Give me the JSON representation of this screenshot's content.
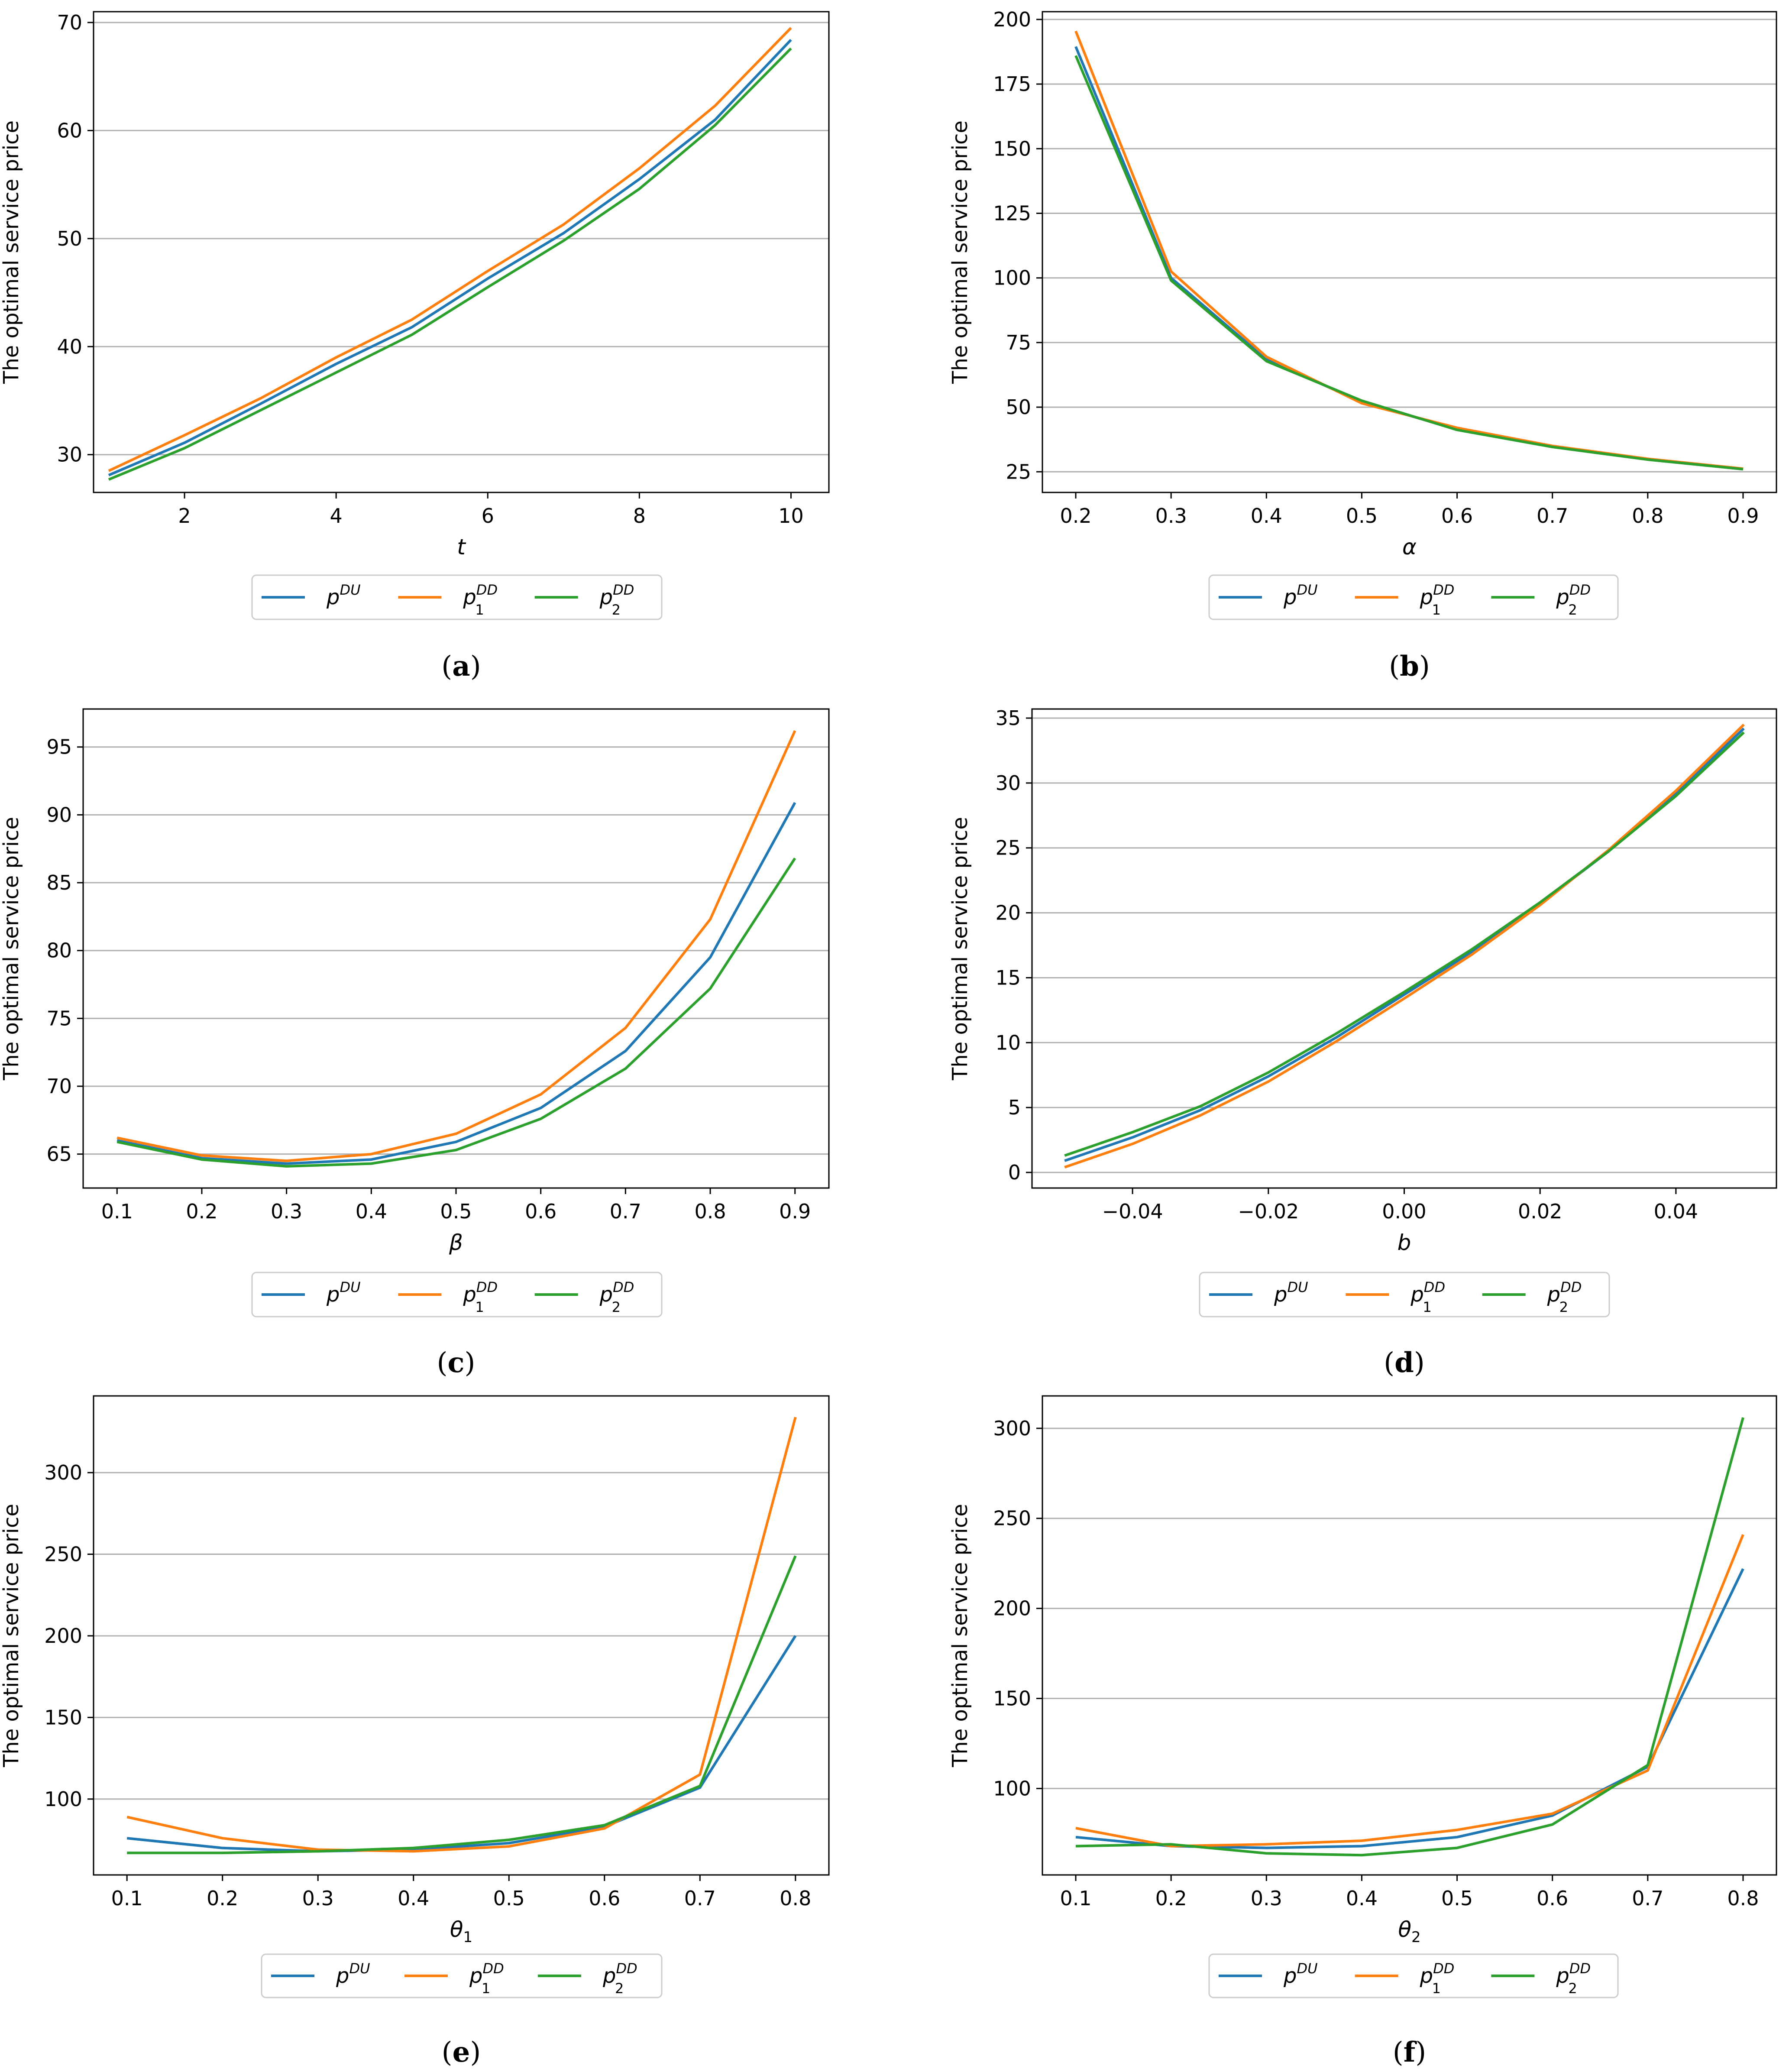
{
  "chart_data": [
    {
      "panel": "a",
      "caption": {
        "open": "(",
        "letter": "a",
        "close": ")"
      },
      "type": "line",
      "ylabel": "The optimal service price",
      "xlabel": "t",
      "xlabel_sub": "",
      "xlim": [
        0.8,
        10.5
      ],
      "ylim": [
        26.5,
        71
      ],
      "xticks": [
        2,
        4,
        6,
        8,
        10
      ],
      "xtick_labels": [
        "2",
        "4",
        "6",
        "8",
        "10"
      ],
      "yticks": [
        30,
        40,
        50,
        60,
        70
      ],
      "ytick_labels": [
        "30",
        "40",
        "50",
        "60",
        "70"
      ],
      "grid": "horizontal",
      "legend_position": "below",
      "x": [
        1,
        2,
        3,
        4,
        5,
        6,
        7,
        8,
        9,
        10
      ],
      "series": [
        {
          "values": [
            28.1,
            31.1,
            34.7,
            38.4,
            41.8,
            46.3,
            50.5,
            55.5,
            61.0,
            68.4
          ],
          "color": "#1f77b4"
        },
        {
          "values": [
            28.5,
            31.8,
            35.2,
            39.0,
            42.5,
            47.0,
            51.3,
            56.5,
            62.3,
            69.5
          ],
          "color": "#ff7f0e"
        },
        {
          "values": [
            27.7,
            30.6,
            34.1,
            37.6,
            41.1,
            45.5,
            49.8,
            54.6,
            60.5,
            67.6
          ],
          "color": "#2ca02c"
        }
      ]
    },
    {
      "panel": "b",
      "caption": {
        "open": "(",
        "letter": "b",
        "close": ")"
      },
      "type": "line",
      "ylabel": "The optimal service price",
      "xlabel": "α",
      "xlabel_sub": "",
      "xlim": [
        0.165,
        0.935
      ],
      "ylim": [
        17,
        203
      ],
      "xticks": [
        0.2,
        0.3,
        0.4,
        0.5,
        0.6,
        0.7,
        0.8,
        0.9
      ],
      "xtick_labels": [
        "0.2",
        "0.3",
        "0.4",
        "0.5",
        "0.6",
        "0.7",
        "0.8",
        "0.9"
      ],
      "yticks": [
        25,
        50,
        75,
        100,
        125,
        150,
        175,
        200
      ],
      "ytick_labels": [
        "25",
        "50",
        "75",
        "100",
        "125",
        "150",
        "175",
        "200"
      ],
      "grid": "horizontal",
      "legend_position": "below",
      "x": [
        0.2,
        0.3,
        0.4,
        0.5,
        0.6,
        0.7,
        0.8,
        0.9
      ],
      "series": [
        {
          "values": [
            189.5,
            100.0,
            68.5,
            52.0,
            41.5,
            34.8,
            29.8,
            26.0
          ],
          "color": "#1f77b4"
        },
        {
          "values": [
            195.5,
            102.5,
            69.5,
            51.5,
            42.0,
            35.0,
            30.0,
            26.2
          ],
          "color": "#ff7f0e"
        },
        {
          "values": [
            186.0,
            99.0,
            67.8,
            52.5,
            41.2,
            34.6,
            29.7,
            26.0
          ],
          "color": "#2ca02c"
        }
      ]
    },
    {
      "panel": "c",
      "caption": {
        "open": "(",
        "letter": "c",
        "close": ")"
      },
      "type": "line",
      "ylabel": "The optimal service price",
      "xlabel": "β",
      "xlabel_sub": "",
      "xlim": [
        0.06,
        0.94
      ],
      "ylim": [
        62.5,
        97.8
      ],
      "xticks": [
        0.1,
        0.2,
        0.3,
        0.4,
        0.5,
        0.6,
        0.7,
        0.8,
        0.9
      ],
      "xtick_labels": [
        "0.1",
        "0.2",
        "0.3",
        "0.4",
        "0.5",
        "0.6",
        "0.7",
        "0.8",
        "0.9"
      ],
      "yticks": [
        65,
        70,
        75,
        80,
        85,
        90,
        95
      ],
      "ytick_labels": [
        "65",
        "70",
        "75",
        "80",
        "85",
        "90",
        "95"
      ],
      "grid": "horizontal",
      "legend_position": "below",
      "x": [
        0.1,
        0.2,
        0.3,
        0.4,
        0.5,
        0.6,
        0.7,
        0.8,
        0.9
      ],
      "series": [
        {
          "values": [
            66.0,
            64.7,
            64.3,
            64.6,
            65.9,
            68.4,
            72.6,
            79.5,
            90.9
          ],
          "color": "#1f77b4"
        },
        {
          "values": [
            66.2,
            64.9,
            64.5,
            65.0,
            66.5,
            69.4,
            74.3,
            82.3,
            96.2
          ],
          "color": "#ff7f0e"
        },
        {
          "values": [
            65.9,
            64.6,
            64.1,
            64.3,
            65.3,
            67.6,
            71.3,
            77.2,
            86.8
          ],
          "color": "#2ca02c"
        }
      ]
    },
    {
      "panel": "d",
      "caption": {
        "open": "(",
        "letter": "d",
        "close": ")"
      },
      "type": "line",
      "ylabel": "The optimal service price",
      "xlabel": "b",
      "xlabel_sub": "",
      "xlim": [
        -0.0548,
        0.0548
      ],
      "ylim": [
        -1.2,
        35.7
      ],
      "xticks": [
        -0.04,
        -0.02,
        0.0,
        0.02,
        0.04
      ],
      "xtick_labels": [
        "−0.04",
        "−0.02",
        "0.00",
        "0.02",
        "0.04"
      ],
      "yticks": [
        0,
        5,
        10,
        15,
        20,
        25,
        30,
        35
      ],
      "ytick_labels": [
        "0",
        "5",
        "10",
        "15",
        "20",
        "25",
        "30",
        "35"
      ],
      "grid": "horizontal",
      "legend_position": "below",
      "x": [
        -0.05,
        -0.04,
        -0.03,
        -0.02,
        -0.01,
        0.0,
        0.01,
        0.02,
        0.03,
        0.04,
        0.05
      ],
      "series": [
        {
          "values": [
            0.9,
            2.7,
            4.8,
            7.4,
            10.4,
            13.7,
            17.0,
            20.7,
            24.7,
            29.2,
            34.2
          ],
          "color": "#1f77b4"
        },
        {
          "values": [
            0.4,
            2.2,
            4.4,
            7.0,
            10.1,
            13.4,
            16.8,
            20.6,
            24.8,
            29.4,
            34.5
          ],
          "color": "#ff7f0e"
        },
        {
          "values": [
            1.3,
            3.1,
            5.1,
            7.7,
            10.7,
            13.9,
            17.2,
            20.8,
            24.7,
            29.0,
            33.9
          ],
          "color": "#2ca02c"
        }
      ]
    },
    {
      "panel": "e",
      "caption": {
        "open": "(",
        "letter": "e",
        "close": ")"
      },
      "type": "line",
      "ylabel": "The optimal service price",
      "xlabel": "θ",
      "xlabel_sub": "1",
      "xlim": [
        0.065,
        0.835
      ],
      "ylim": [
        53.5,
        347
      ],
      "xticks": [
        0.1,
        0.2,
        0.3,
        0.4,
        0.5,
        0.6,
        0.7,
        0.8
      ],
      "xtick_labels": [
        "0.1",
        "0.2",
        "0.3",
        "0.4",
        "0.5",
        "0.6",
        "0.7",
        "0.8"
      ],
      "yticks": [
        100,
        150,
        200,
        250,
        300
      ],
      "ytick_labels": [
        "100",
        "150",
        "200",
        "250",
        "300"
      ],
      "grid": "horizontal",
      "legend_position": "below",
      "x": [
        0.1,
        0.2,
        0.3,
        0.4,
        0.5,
        0.6,
        0.7,
        0.8
      ],
      "series": [
        {
          "values": [
            76,
            70,
            68,
            69,
            73,
            83,
            107,
            200
          ],
          "color": "#1f77b4"
        },
        {
          "values": [
            89,
            76,
            69,
            68,
            71,
            82,
            115,
            334
          ],
          "color": "#ff7f0e"
        },
        {
          "values": [
            67,
            67,
            68,
            70,
            75,
            84,
            108,
            249
          ],
          "color": "#2ca02c"
        }
      ]
    },
    {
      "panel": "f",
      "caption": {
        "open": "(",
        "letter": "f",
        "close": ")"
      },
      "type": "line",
      "ylabel": "The optimal service price",
      "xlabel": "θ",
      "xlabel_sub": "2",
      "xlim": [
        0.065,
        0.835
      ],
      "ylim": [
        52,
        318
      ],
      "xticks": [
        0.1,
        0.2,
        0.3,
        0.4,
        0.5,
        0.6,
        0.7,
        0.8
      ],
      "xtick_labels": [
        "0.1",
        "0.2",
        "0.3",
        "0.4",
        "0.5",
        "0.6",
        "0.7",
        "0.8"
      ],
      "yticks": [
        100,
        150,
        200,
        250,
        300
      ],
      "ytick_labels": [
        "100",
        "150",
        "200",
        "250",
        "300"
      ],
      "grid": "horizontal",
      "legend_position": "below",
      "x": [
        0.1,
        0.2,
        0.3,
        0.4,
        0.5,
        0.6,
        0.7,
        0.8
      ],
      "series": [
        {
          "values": [
            73,
            68,
            67,
            68,
            73,
            85,
            112,
            222
          ],
          "color": "#1f77b4"
        },
        {
          "values": [
            78,
            68,
            69,
            71,
            77,
            86,
            110,
            241
          ],
          "color": "#ff7f0e"
        },
        {
          "values": [
            68,
            69,
            64,
            63,
            67,
            80,
            113,
            306
          ],
          "color": "#2ca02c"
        }
      ]
    }
  ],
  "legend": {
    "entries": [
      {
        "base": "p",
        "sup": "DU",
        "sub": "",
        "color": "#1f77b4"
      },
      {
        "base": "p",
        "sup": "DD",
        "sub": "1",
        "color": "#ff7f0e"
      },
      {
        "base": "p",
        "sup": "DD",
        "sub": "2",
        "color": "#2ca02c"
      }
    ]
  }
}
